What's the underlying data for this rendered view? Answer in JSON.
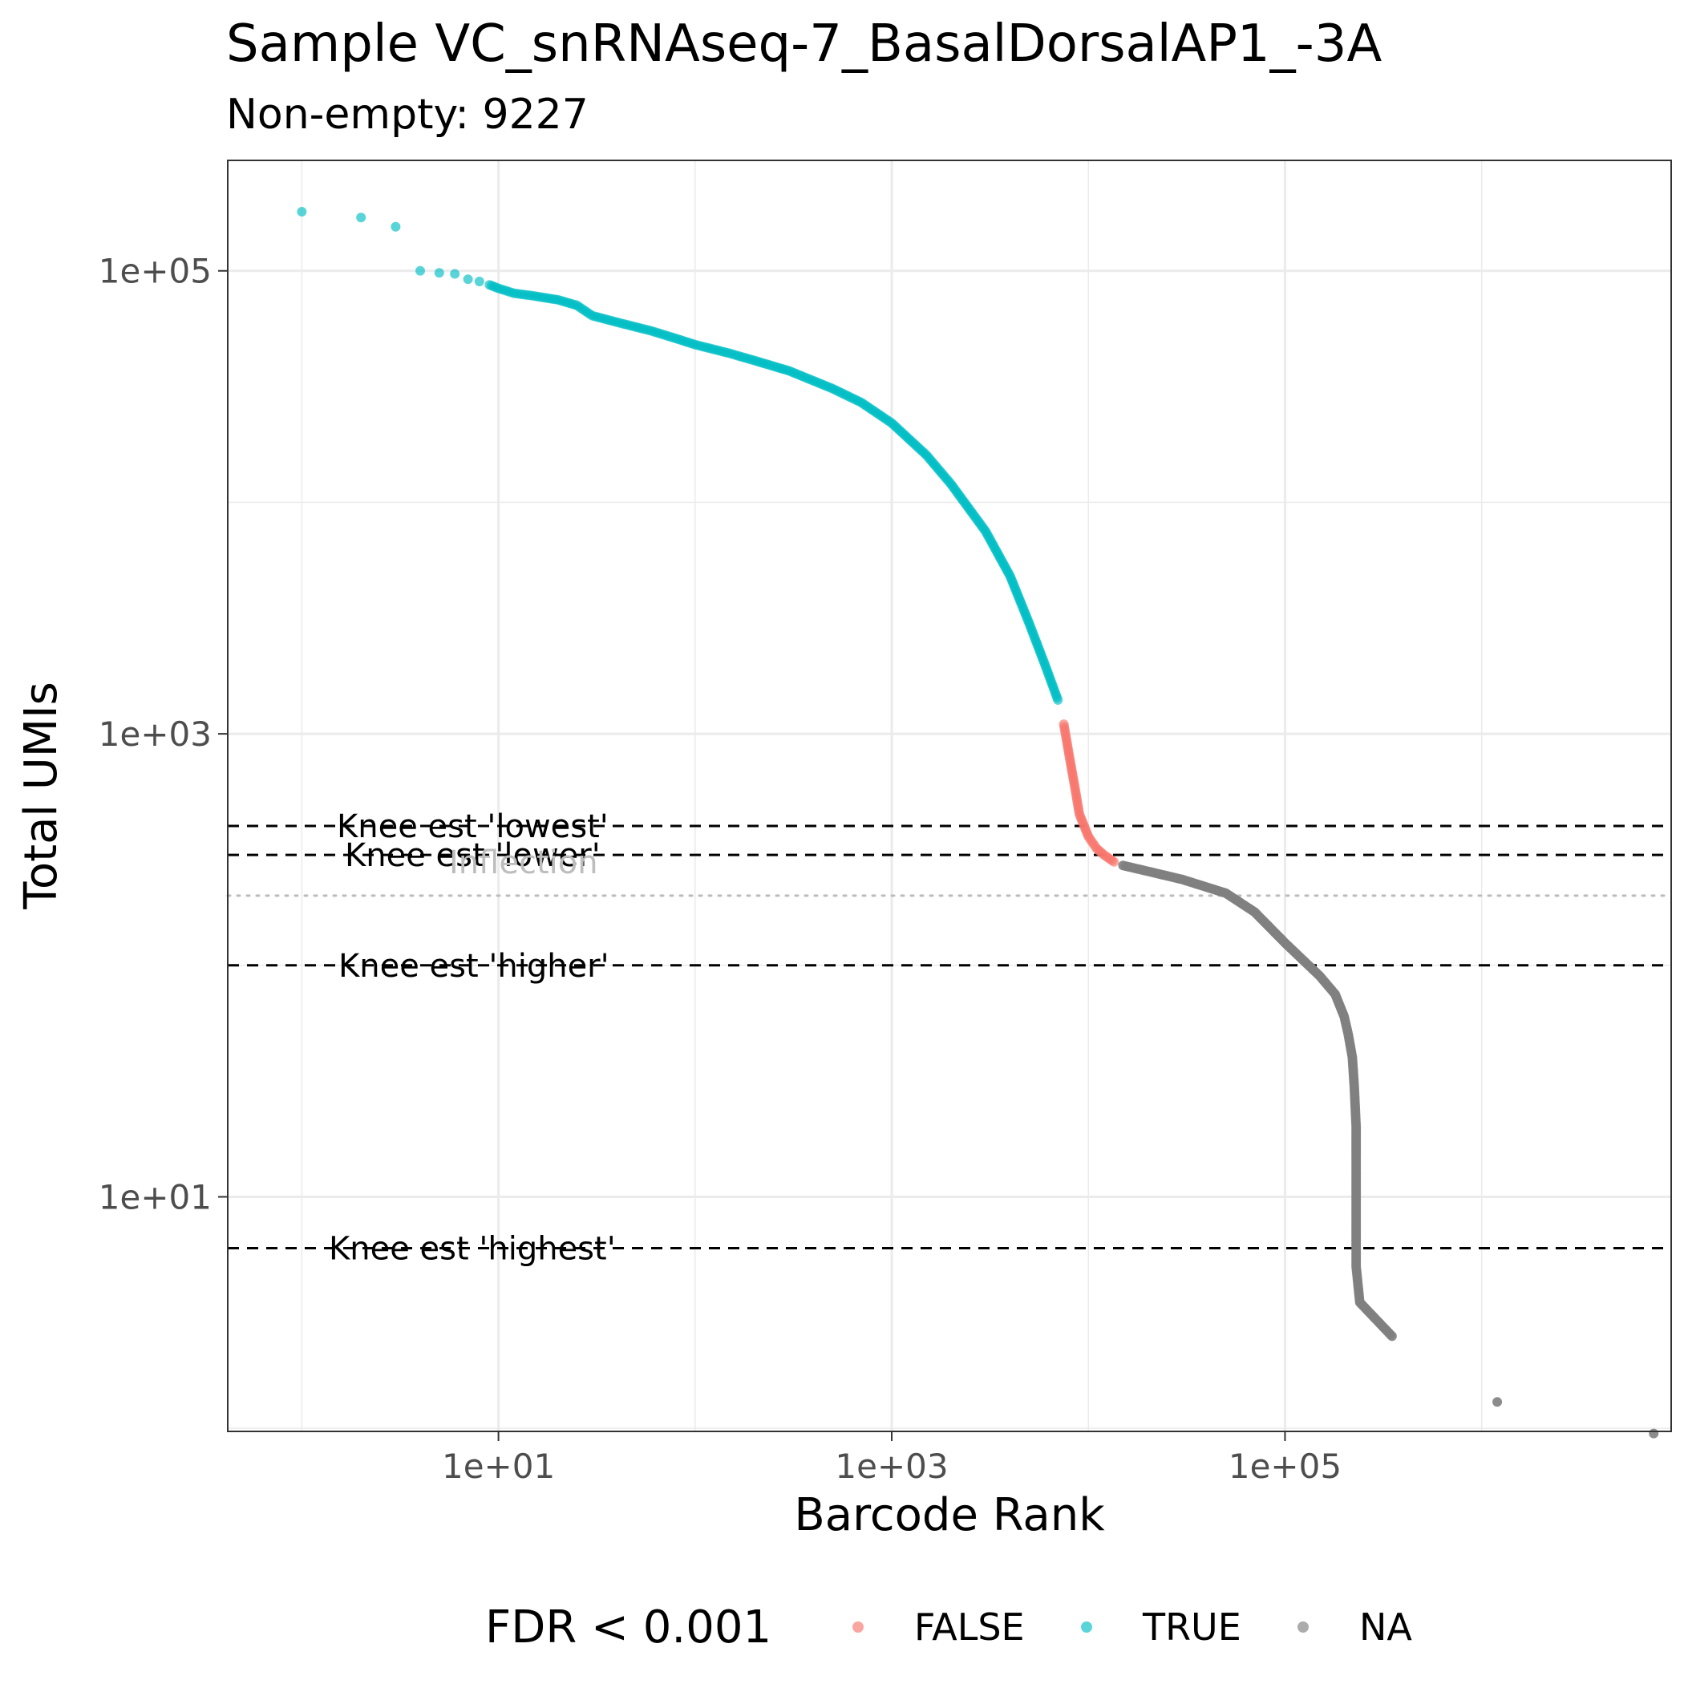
{
  "chart_data": {
    "type": "scatter",
    "title": "Sample VC_snRNAseq-7_BasalDorsalAP1_-3A",
    "subtitle": "Non-empty: 9227",
    "xlabel": "Barcode Rank",
    "ylabel": "Total UMIs",
    "x_scale": "log10",
    "y_scale": "log10",
    "xlim": [
      0.42,
      9200000
    ],
    "ylim": [
      0.97,
      300000
    ],
    "x_ticks": [
      {
        "value": 10,
        "label": "1e+01"
      },
      {
        "value": 1000,
        "label": "1e+03"
      },
      {
        "value": 100000,
        "label": "1e+05"
      }
    ],
    "y_ticks": [
      {
        "value": 10,
        "label": "1e+01"
      },
      {
        "value": 1000,
        "label": "1e+03"
      },
      {
        "value": 100000,
        "label": "1e+05"
      }
    ],
    "grid": true,
    "legend": {
      "position": "bottom",
      "title": "FDR < 0.001",
      "entries": [
        {
          "label": "FALSE",
          "color": "#F8766D"
        },
        {
          "label": "TRUE",
          "color": "#00BFC4"
        },
        {
          "label": "NA",
          "color": "#808080"
        }
      ]
    },
    "series": [
      {
        "name": "TRUE",
        "color": "#00BFC4",
        "points": [
          [
            1,
            180000
          ],
          [
            2,
            170000
          ],
          [
            3,
            155000
          ],
          [
            4,
            100000
          ],
          [
            5,
            98000
          ],
          [
            6,
            97000
          ],
          [
            7,
            92000
          ],
          [
            8,
            90000
          ],
          [
            9,
            87000
          ],
          [
            10,
            84000
          ],
          [
            12,
            80000
          ],
          [
            15,
            78000
          ],
          [
            20,
            75000
          ],
          [
            25,
            71000
          ],
          [
            30,
            64000
          ],
          [
            40,
            60000
          ],
          [
            60,
            55000
          ],
          [
            80,
            51000
          ],
          [
            100,
            48000
          ],
          [
            150,
            44000
          ],
          [
            200,
            41000
          ],
          [
            300,
            37000
          ],
          [
            500,
            31000
          ],
          [
            700,
            27000
          ],
          [
            1000,
            22000
          ],
          [
            1500,
            16000
          ],
          [
            2000,
            12000
          ],
          [
            3000,
            7500
          ],
          [
            4000,
            4800
          ],
          [
            5000,
            3000
          ],
          [
            6000,
            2000
          ],
          [
            7000,
            1400
          ]
        ]
      },
      {
        "name": "FALSE",
        "color": "#F8766D",
        "points": [
          [
            7500,
            1100
          ],
          [
            8000,
            800
          ],
          [
            8500,
            600
          ],
          [
            9000,
            450
          ],
          [
            10000,
            360
          ],
          [
            11000,
            320
          ],
          [
            12000,
            300
          ],
          [
            13500,
            280
          ]
        ]
      },
      {
        "name": "NA",
        "color": "#808080",
        "points": [
          [
            15000,
            270
          ],
          [
            20000,
            255
          ],
          [
            30000,
            235
          ],
          [
            50000,
            205
          ],
          [
            70000,
            170
          ],
          [
            100000,
            125
          ],
          [
            150000,
            90
          ],
          [
            180000,
            75
          ],
          [
            200000,
            60
          ],
          [
            210000,
            50
          ],
          [
            220000,
            40
          ],
          [
            225000,
            30
          ],
          [
            230000,
            20
          ],
          [
            230000,
            15
          ],
          [
            230000,
            10
          ],
          [
            230000,
            8
          ],
          [
            230000,
            6
          ],
          [
            230000,
            5
          ],
          [
            240000,
            3.5
          ],
          [
            350000,
            2.5
          ],
          [
            1200000,
            1.3
          ],
          [
            7500000,
            0.95
          ]
        ]
      }
    ],
    "annotations": [
      {
        "label": "Knee est 'lowest'",
        "y": 400,
        "line": "dashed"
      },
      {
        "label": "Knee est 'lower'",
        "y": 300,
        "line": "dashed"
      },
      {
        "label": "Knee est 'higher'",
        "y": 100,
        "line": "dashed"
      },
      {
        "label": "Knee est 'highest'",
        "y": 6,
        "line": "dashed"
      },
      {
        "label": "Inflection",
        "y": 200,
        "line": "dotted",
        "faint": true
      }
    ]
  }
}
